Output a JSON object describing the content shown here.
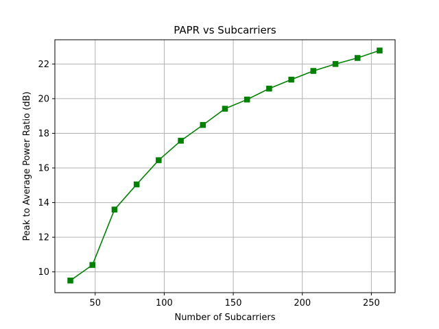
{
  "chart_data": {
    "type": "line",
    "title": "PAPR vs Subcarriers",
    "xlabel": "Number of Subcarriers",
    "ylabel": "Peak to Average Power Ratio (dB)",
    "xlim": [
      20.8,
      267.2
    ],
    "ylim": [
      8.8,
      23.4
    ],
    "xticks": [
      50,
      100,
      150,
      200,
      250
    ],
    "yticks": [
      10,
      12,
      14,
      16,
      18,
      20,
      22
    ],
    "grid": true,
    "series": [
      {
        "color": "#008000",
        "marker": "square",
        "x": [
          32,
          48,
          64,
          80,
          96,
          112,
          128,
          144,
          160,
          176,
          192,
          208,
          224,
          240,
          256
        ],
        "y": [
          9.5,
          10.4,
          13.6,
          15.05,
          16.45,
          17.57,
          18.48,
          19.42,
          19.95,
          20.58,
          21.1,
          21.6,
          22.0,
          22.35,
          22.78
        ]
      }
    ]
  }
}
